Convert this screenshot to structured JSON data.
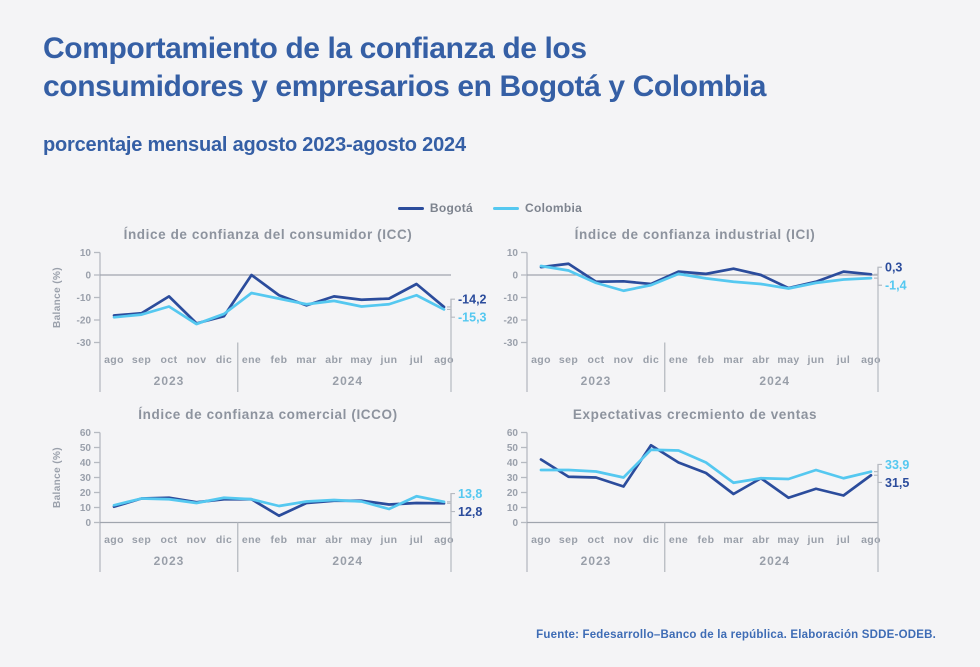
{
  "header": {
    "title_line1": "Comportamiento de la confianza de los",
    "title_line2": "consumidores y empresarios en Bogotá y Colombia",
    "subtitle": "porcentaje mensual agosto 2023-agosto 2024"
  },
  "legend": [
    {
      "label": "Bogotá",
      "color": "#2b4c9c"
    },
    {
      "label": "Colombia",
      "color": "#55c8f0"
    }
  ],
  "footer": {
    "source": "Fuente: Fedesarrollo–Banco de la república. Elaboración SDDE-ODEB."
  },
  "colors": {
    "background": "#f4f4f6",
    "title_blue": "#355fa5",
    "bogota_line": "#2b4c9c",
    "colombia_line": "#55c8f0",
    "axis_gray": "#b6bac1",
    "zero_line": "#a0a5ae",
    "text_gray": "#8d939e",
    "footer_blue": "#3e6cb5"
  },
  "chart_data": [
    {
      "id": "icc",
      "type": "line",
      "title": "Índice de confianza del consumidor (ICC)",
      "ylabel": "Balance (%)",
      "ylim": [
        -30,
        10
      ],
      "yticks": [
        10,
        0,
        -10,
        -20,
        -30
      ],
      "categories": [
        "ago",
        "sep",
        "oct",
        "nov",
        "dic",
        "ene",
        "feb",
        "mar",
        "abr",
        "may",
        "jun",
        "jul",
        "ago"
      ],
      "year_groups": [
        {
          "label": "2023",
          "span": [
            0,
            4
          ]
        },
        {
          "label": "2024",
          "span": [
            5,
            12
          ]
        }
      ],
      "series": [
        {
          "name": "Bogotá",
          "color": "#2b4c9c",
          "end_label": "-14,2",
          "values": [
            -18,
            -17,
            -9.5,
            -21.5,
            -18.3,
            0,
            -9,
            -13.5,
            -9.5,
            -11,
            -10.5,
            -4,
            -14.2
          ]
        },
        {
          "name": "Colombia",
          "color": "#55c8f0",
          "end_label": "-15,3",
          "values": [
            -18.8,
            -17.6,
            -14,
            -21.8,
            -17.3,
            -8,
            -10.5,
            -13,
            -11.5,
            -14,
            -13,
            -9,
            -15.3
          ]
        }
      ]
    },
    {
      "id": "ici",
      "type": "line",
      "title": "Índice de confianza industrial (ICI)",
      "ylabel": "",
      "ylim": [
        -30,
        10
      ],
      "yticks": [
        10,
        0,
        -10,
        -20,
        -30
      ],
      "categories": [
        "ago",
        "sep",
        "oct",
        "nov",
        "dic",
        "ene",
        "feb",
        "mar",
        "abr",
        "may",
        "jun",
        "jul",
        "ago"
      ],
      "year_groups": [
        {
          "label": "2023",
          "span": [
            0,
            4
          ]
        },
        {
          "label": "2024",
          "span": [
            5,
            12
          ]
        }
      ],
      "series": [
        {
          "name": "Bogotá",
          "color": "#2b4c9c",
          "end_label": "0,3",
          "values": [
            3.5,
            5,
            -3,
            -2.8,
            -4,
            1.5,
            0.5,
            2.8,
            0,
            -5.8,
            -3,
            1.5,
            0.3
          ]
        },
        {
          "name": "Colombia",
          "color": "#55c8f0",
          "end_label": "-1,4",
          "values": [
            4,
            2,
            -3.5,
            -7,
            -4.5,
            0.5,
            -1.5,
            -3,
            -4,
            -6,
            -3.5,
            -2,
            -1.4
          ]
        }
      ]
    },
    {
      "id": "icco",
      "type": "line",
      "title": "Índice de confianza comercial (ICCO)",
      "ylabel": "Balance (%)",
      "ylim": [
        0,
        60
      ],
      "yticks": [
        60,
        50,
        40,
        30,
        20,
        10,
        0
      ],
      "categories": [
        "ago",
        "sep",
        "oct",
        "nov",
        "dic",
        "ene",
        "feb",
        "mar",
        "abr",
        "may",
        "jun",
        "jul",
        "ago"
      ],
      "year_groups": [
        {
          "label": "2023",
          "span": [
            0,
            4
          ]
        },
        {
          "label": "2024",
          "span": [
            5,
            12
          ]
        }
      ],
      "series": [
        {
          "name": "Bogotá",
          "color": "#2b4c9c",
          "end_label": "12,8",
          "values": [
            10.5,
            16,
            16.5,
            13.5,
            15.5,
            15.5,
            4.5,
            13,
            14.5,
            14.5,
            12,
            13,
            12.8
          ]
        },
        {
          "name": "Colombia",
          "color": "#55c8f0",
          "end_label": "13,8",
          "values": [
            11.5,
            16,
            15.5,
            13,
            16.5,
            15.5,
            11,
            14,
            15,
            14,
            9,
            17.5,
            13.8
          ]
        }
      ]
    },
    {
      "id": "ventas",
      "type": "line",
      "title": "Expectativas crecmiento de ventas",
      "ylabel": "",
      "ylim": [
        0,
        60
      ],
      "yticks": [
        60,
        50,
        40,
        30,
        20,
        10,
        0
      ],
      "categories": [
        "ago",
        "sep",
        "oct",
        "nov",
        "dic",
        "ene",
        "feb",
        "mar",
        "abr",
        "may",
        "jun",
        "jul",
        "ago"
      ],
      "year_groups": [
        {
          "label": "2023",
          "span": [
            0,
            4
          ]
        },
        {
          "label": "2024",
          "span": [
            5,
            12
          ]
        }
      ],
      "series": [
        {
          "name": "Bogotá",
          "color": "#2b4c9c",
          "end_label": "31,5",
          "values": [
            42,
            30.5,
            30,
            24,
            51.5,
            40,
            33,
            19,
            29.5,
            16.5,
            22.5,
            18,
            31.5
          ]
        },
        {
          "name": "Colombia",
          "color": "#55c8f0",
          "end_label": "33,9",
          "values": [
            35,
            35,
            34,
            30,
            48.5,
            48,
            40,
            26.5,
            29.5,
            29,
            35,
            29.5,
            33.9
          ]
        }
      ]
    }
  ]
}
